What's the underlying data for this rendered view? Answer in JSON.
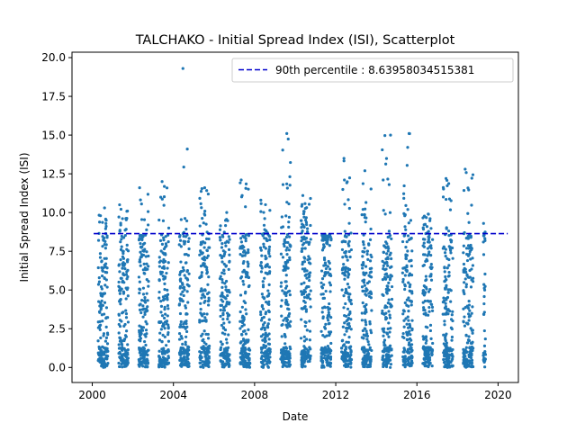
{
  "chart_data": {
    "type": "scatter",
    "title": "TALCHAKO - Initial Spread Index (ISI), Scatterplot",
    "xlabel": "Date",
    "ylabel": "Initial Spread Index (ISI)",
    "xlim": [
      "1999-01-01",
      "2021-01-01"
    ],
    "ylim": [
      -0.97,
      20.35
    ],
    "x_ticks": [
      "2000",
      "2004",
      "2008",
      "2012",
      "2016",
      "2020"
    ],
    "y_ticks": [
      "0.0",
      "2.5",
      "5.0",
      "7.5",
      "10.0",
      "12.5",
      "15.0",
      "17.5",
      "20.0"
    ],
    "grid": false,
    "legend_position": "top-right",
    "point_color": "#1f77b4",
    "reference_line": {
      "label": "90th percentile : 8.63958034515381",
      "value": 8.63958034515381,
      "color": "#0000cc",
      "style": "dashed"
    },
    "seasons": [
      {
        "year": 2000,
        "start": "2000-04-15",
        "end": "2000-10-10",
        "max": 10.3
      },
      {
        "year": 2001,
        "start": "2001-04-20",
        "end": "2001-10-10",
        "max": 10.5
      },
      {
        "year": 2002,
        "start": "2002-04-15",
        "end": "2002-10-10",
        "max": 11.6
      },
      {
        "year": 2003,
        "start": "2003-04-15",
        "end": "2003-10-10",
        "max": 12.0
      },
      {
        "year": 2004,
        "start": "2004-04-15",
        "end": "2004-10-10",
        "max": 14.1
      },
      {
        "year": 2005,
        "start": "2005-04-15",
        "end": "2005-10-10",
        "max": 11.6
      },
      {
        "year": 2006,
        "start": "2006-04-15",
        "end": "2006-10-10",
        "max": 10.0
      },
      {
        "year": 2007,
        "start": "2007-04-15",
        "end": "2007-10-10",
        "max": 12.1
      },
      {
        "year": 2008,
        "start": "2008-04-15",
        "end": "2008-10-10",
        "max": 10.8
      },
      {
        "year": 2009,
        "start": "2009-04-15",
        "end": "2009-10-10",
        "max": 15.1
      },
      {
        "year": 2010,
        "start": "2010-04-15",
        "end": "2010-10-10",
        "max": 11.1
      },
      {
        "year": 2011,
        "start": "2011-04-15",
        "end": "2011-10-10",
        "max": 8.2
      },
      {
        "year": 2012,
        "start": "2012-04-15",
        "end": "2012-10-10",
        "max": 13.5
      },
      {
        "year": 2013,
        "start": "2013-04-15",
        "end": "2013-10-10",
        "max": 12.7
      },
      {
        "year": 2014,
        "start": "2014-04-15",
        "end": "2014-10-10",
        "max": 15.0
      },
      {
        "year": 2015,
        "start": "2015-04-15",
        "end": "2015-10-10",
        "max": 15.1
      },
      {
        "year": 2016,
        "start": "2016-04-15",
        "end": "2016-10-10",
        "max": 9.9
      },
      {
        "year": 2017,
        "start": "2017-04-15",
        "end": "2017-10-10",
        "max": 12.2
      },
      {
        "year": 2018,
        "start": "2018-04-15",
        "end": "2018-10-10",
        "max": 12.8
      },
      {
        "year": 2019,
        "start": "2019-04-10",
        "end": "2019-05-20",
        "max": 9.3
      }
    ],
    "outliers": [
      {
        "date": "2004-06-20",
        "value": 19.3
      }
    ]
  }
}
